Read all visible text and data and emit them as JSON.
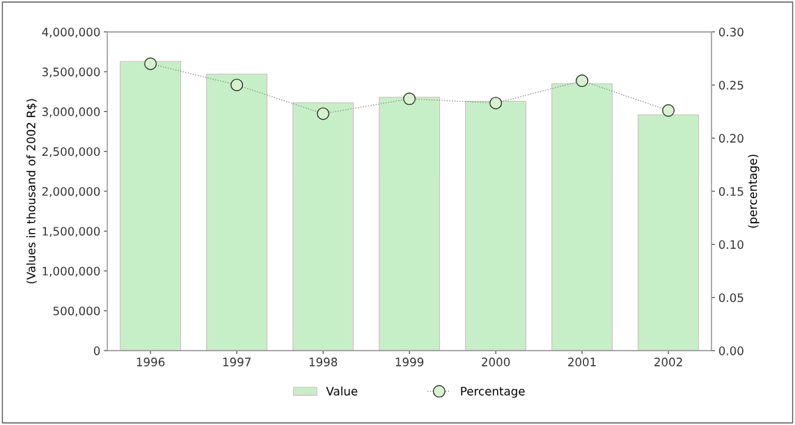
{
  "chart_data": {
    "type": "bar",
    "ylabel": "(Values in thousand of 2002 R$)",
    "y2label": "(percentage)",
    "categories": [
      "1996",
      "1997",
      "1998",
      "1999",
      "2000",
      "2001",
      "2002"
    ],
    "series": [
      {
        "name": "Value",
        "color": "#c6efc8",
        "values": [
          3630000,
          3470000,
          3110000,
          3180000,
          3130000,
          3350000,
          2960000
        ]
      },
      {
        "name": "Percentage",
        "type": "line",
        "axis": "y2",
        "color": "#8a8a8a",
        "marker": "circle",
        "line_style": "dotted",
        "values": [
          0.27,
          0.25,
          0.223,
          0.237,
          0.233,
          0.254,
          0.226
        ]
      }
    ],
    "ylim": [
      0,
      4000000
    ],
    "yticks": [
      {
        "value": 0,
        "label": "0"
      },
      {
        "value": 500000,
        "label": "500,000"
      },
      {
        "value": 1000000,
        "label": "1,000,000"
      },
      {
        "value": 1500000,
        "label": "1,500,000"
      },
      {
        "value": 2000000,
        "label": "2,000,000"
      },
      {
        "value": 2500000,
        "label": "2,500,000"
      },
      {
        "value": 3000000,
        "label": "3,000,000"
      },
      {
        "value": 3500000,
        "label": "3,500,000"
      },
      {
        "value": 4000000,
        "label": "4,000,000"
      }
    ],
    "y2lim": [
      0,
      0.3
    ],
    "y2ticks": [
      {
        "value": 0,
        "label": "0.00"
      },
      {
        "value": 0.05,
        "label": "0.05"
      },
      {
        "value": 0.1,
        "label": "0.10"
      },
      {
        "value": 0.15,
        "label": "0.15"
      },
      {
        "value": 0.2,
        "label": "0.20"
      },
      {
        "value": 0.25,
        "label": "0.25"
      },
      {
        "value": 0.3,
        "label": "0.30"
      }
    ],
    "legend": "bottom",
    "grid": false
  }
}
